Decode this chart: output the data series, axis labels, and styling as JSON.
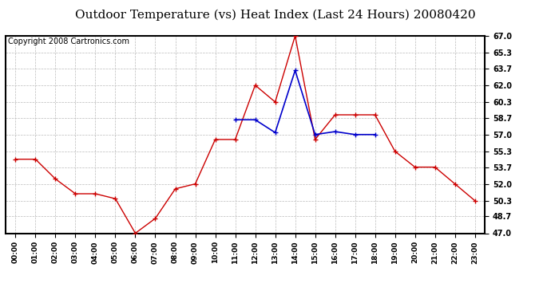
{
  "title": "Outdoor Temperature (vs) Heat Index (Last 24 Hours) 20080420",
  "copyright": "Copyright 2008 Cartronics.com",
  "x_labels": [
    "00:00",
    "01:00",
    "02:00",
    "03:00",
    "04:00",
    "05:00",
    "06:00",
    "07:00",
    "08:00",
    "09:00",
    "10:00",
    "11:00",
    "12:00",
    "13:00",
    "14:00",
    "15:00",
    "16:00",
    "17:00",
    "18:00",
    "19:00",
    "20:00",
    "21:00",
    "22:00",
    "23:00"
  ],
  "temp_data": [
    54.5,
    54.5,
    52.5,
    51.0,
    51.0,
    50.5,
    47.0,
    48.5,
    51.5,
    52.0,
    56.5,
    56.5,
    62.0,
    60.3,
    67.0,
    56.5,
    59.0,
    59.0,
    59.0,
    55.3,
    53.7,
    53.7,
    52.0,
    50.3
  ],
  "heat_data": [
    null,
    null,
    null,
    null,
    null,
    null,
    null,
    null,
    null,
    null,
    null,
    58.5,
    58.5,
    57.2,
    63.5,
    57.0,
    57.3,
    57.0,
    57.0,
    null,
    null,
    null,
    null,
    null
  ],
  "temp_color": "#cc0000",
  "heat_color": "#0000cc",
  "y_min": 47.0,
  "y_max": 67.0,
  "y_ticks": [
    47.0,
    48.7,
    50.3,
    52.0,
    53.7,
    55.3,
    57.0,
    58.7,
    60.3,
    62.0,
    63.7,
    65.3,
    67.0
  ],
  "bg_color": "#ffffff",
  "plot_bg_color": "#ffffff",
  "grid_color": "#bbbbbb",
  "title_fontsize": 11,
  "copyright_fontsize": 7
}
